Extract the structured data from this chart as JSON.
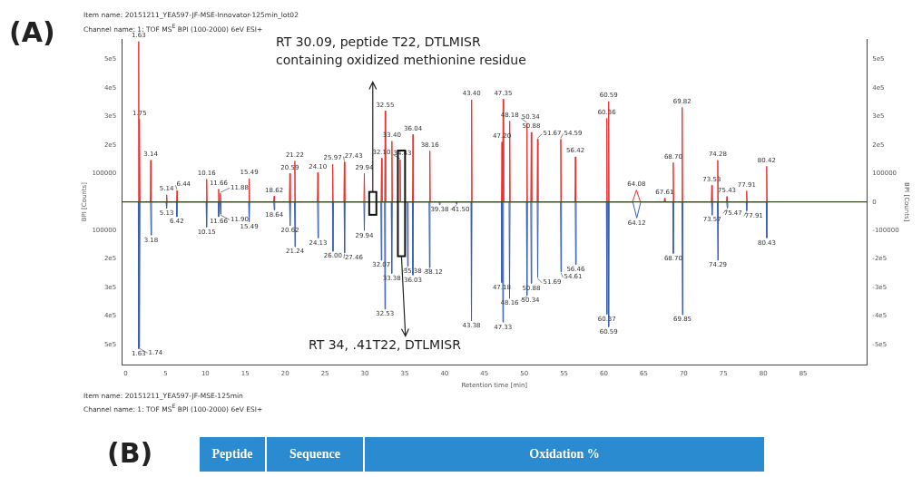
{
  "chart_data": {
    "type": "line",
    "xlabel": "Retention time [min]",
    "ylabel": "BPI [Counts]",
    "y2label": "BPI [Counts]",
    "marker": "none",
    "xlim": [
      -0.5,
      93
    ],
    "xticks": [
      0,
      5,
      10,
      15,
      20,
      25,
      30,
      35,
      40,
      45,
      50,
      55,
      60,
      65,
      70,
      75,
      80,
      85
    ],
    "ylim": [
      -570000,
      570000
    ],
    "yticks": [
      {
        "value": -500000,
        "label": "5e5"
      },
      {
        "value": -400000,
        "label": "4e5"
      },
      {
        "value": -300000,
        "label": "3e5"
      },
      {
        "value": -200000,
        "label": "2e5"
      },
      {
        "value": -100000,
        "label": "100000"
      },
      100000,
      {
        "value": 200000,
        "label": "2e5"
      },
      {
        "value": 300000,
        "label": "3e5"
      },
      {
        "value": 400000,
        "label": "4e5"
      },
      {
        "value": 500000,
        "label": "5e5"
      }
    ],
    "y2lim": [
      -570000,
      570000
    ],
    "y2ticks": [
      {
        "value": -500000,
        "label": "-5e5"
      },
      {
        "value": -400000,
        "label": "-4e5"
      },
      {
        "value": -300000,
        "label": "-3e5"
      },
      {
        "value": -200000,
        "label": "-2e5"
      },
      -100000,
      0,
      100000,
      {
        "value": 200000,
        "label": "2e5"
      },
      {
        "value": 300000,
        "label": "3e5"
      },
      {
        "value": 400000,
        "label": "4e5"
      },
      {
        "value": 500000,
        "label": "5e5"
      }
    ],
    "ref_lines": [
      {
        "axis": "y",
        "value": 0,
        "color": "#3b4a24"
      }
    ],
    "series": [
      {
        "color": "#e8312f",
        "x": [
          1.58,
          1.63,
          1.68,
          1.7,
          1.75,
          1.8,
          3.08,
          3.14,
          3.2,
          5.08,
          5.14,
          5.2,
          6.38,
          6.44,
          6.5,
          10.1,
          10.16,
          10.22,
          11.6,
          11.66,
          11.72,
          11.82,
          11.88,
          11.94,
          15.43,
          15.49,
          15.55,
          18.56,
          18.62,
          18.68,
          20.53,
          20.59,
          20.65,
          21.16,
          21.22,
          21.28,
          24.04,
          24.1,
          24.16,
          25.91,
          25.97,
          26.03,
          27.37,
          27.43,
          27.49,
          29.88,
          29.94,
          30.0,
          32.04,
          32.1,
          32.16,
          32.49,
          32.55,
          32.61,
          33.34,
          33.4,
          33.46,
          34.37,
          34.43,
          34.49,
          35.98,
          36.04,
          36.1,
          38.1,
          38.16,
          38.22,
          43.34,
          43.4,
          43.46,
          47.14,
          47.2,
          47.26,
          47.29,
          47.35,
          47.41,
          48.12,
          48.18,
          48.24,
          50.28,
          50.34,
          50.4,
          50.82,
          50.88,
          50.94,
          51.61,
          51.67,
          51.73,
          54.53,
          54.59,
          54.65,
          56.36,
          56.42,
          56.48,
          60.3,
          60.36,
          60.42,
          60.53,
          60.59,
          60.65,
          63.58,
          64.08,
          64.58,
          67.55,
          67.61,
          67.67,
          68.64,
          68.7,
          68.76,
          69.76,
          69.82,
          69.88,
          73.47,
          73.53,
          73.59,
          74.22,
          74.28,
          74.34,
          75.37,
          75.43,
          75.49,
          77.85,
          77.91,
          77.97,
          80.36,
          80.42,
          80.48
        ],
        "values": [
          0,
          562000,
          0,
          0,
          290000,
          0,
          0,
          146000,
          0,
          0,
          25000,
          0,
          0,
          40000,
          0,
          0,
          80000,
          0,
          0,
          45000,
          0,
          0,
          30000,
          0,
          0,
          82000,
          0,
          0,
          20000,
          0,
          0,
          100000,
          0,
          0,
          143000,
          0,
          0,
          103000,
          0,
          0,
          132000,
          0,
          0,
          140000,
          0,
          0,
          100000,
          0,
          0,
          153000,
          0,
          0,
          319000,
          0,
          0,
          213000,
          0,
          0,
          148000,
          0,
          0,
          236000,
          0,
          0,
          179000,
          0,
          0,
          358000,
          0,
          0,
          210000,
          0,
          0,
          360000,
          0,
          0,
          283000,
          0,
          0,
          275000,
          0,
          0,
          244000,
          0,
          0,
          220000,
          0,
          0,
          220000,
          0,
          0,
          158000,
          0,
          0,
          293000,
          0,
          0,
          352000,
          0,
          0,
          42000,
          0,
          0,
          13000,
          0,
          0,
          138000,
          0,
          0,
          331000,
          0,
          0,
          58000,
          0,
          0,
          146000,
          0,
          0,
          19000,
          0,
          0,
          39000,
          0,
          0,
          125000,
          0
        ]
      },
      {
        "color": "#3a5fb0",
        "x": [
          1.58,
          1.63,
          1.68,
          1.69,
          1.74,
          1.79,
          3.12,
          3.18,
          3.24,
          5.07,
          5.13,
          5.19,
          6.36,
          6.42,
          6.48,
          10.09,
          10.15,
          10.21,
          11.6,
          11.66,
          11.72,
          11.84,
          11.9,
          11.96,
          15.43,
          15.49,
          15.55,
          18.58,
          18.64,
          18.7,
          20.56,
          20.62,
          20.68,
          21.18,
          21.24,
          21.3,
          24.07,
          24.13,
          24.19,
          25.94,
          26.0,
          26.06,
          27.4,
          27.46,
          27.52,
          29.88,
          29.94,
          30.0,
          32.01,
          32.07,
          32.13,
          32.47,
          32.53,
          32.59,
          33.32,
          33.38,
          33.44,
          35.32,
          35.38,
          35.44,
          35.97,
          36.03,
          36.09,
          38.06,
          38.12,
          38.18,
          39.32,
          39.38,
          39.44,
          41.44,
          41.5,
          41.56,
          43.32,
          43.38,
          43.44,
          47.12,
          47.18,
          47.24,
          47.27,
          47.33,
          47.39,
          48.1,
          48.16,
          48.22,
          50.28,
          50.34,
          50.4,
          50.82,
          50.88,
          50.94,
          51.63,
          51.69,
          51.75,
          54.55,
          54.61,
          54.67,
          56.4,
          56.46,
          56.52,
          60.31,
          60.37,
          60.43,
          60.53,
          60.59,
          60.65,
          63.62,
          64.12,
          64.62,
          68.64,
          68.7,
          68.76,
          69.79,
          69.85,
          69.91,
          73.51,
          73.57,
          73.63,
          74.23,
          74.29,
          74.35,
          75.41,
          75.47,
          75.53,
          77.85,
          77.91,
          77.97,
          80.37,
          80.43,
          80.49
        ],
        "values": [
          0,
          -514000,
          0,
          0,
          -510000,
          0,
          0,
          -116000,
          0,
          0,
          -23000,
          0,
          0,
          -52000,
          0,
          0,
          -88000,
          0,
          0,
          -52000,
          0,
          0,
          -43000,
          0,
          0,
          -69000,
          0,
          0,
          -28000,
          0,
          0,
          -83000,
          0,
          0,
          -157000,
          0,
          0,
          -126000,
          0,
          0,
          -173000,
          0,
          0,
          -178000,
          0,
          0,
          -100000,
          0,
          0,
          -204000,
          0,
          0,
          -375000,
          0,
          0,
          -250000,
          0,
          0,
          -225000,
          0,
          0,
          -256000,
          0,
          0,
          -230000,
          0,
          0,
          -10000,
          0,
          0,
          -8000,
          0,
          0,
          -416000,
          0,
          0,
          -282000,
          0,
          0,
          -421000,
          0,
          0,
          -338000,
          0,
          0,
          -327000,
          0,
          0,
          -285000,
          0,
          0,
          -265000,
          0,
          0,
          -245000,
          0,
          0,
          -219000,
          0,
          0,
          -393000,
          0,
          0,
          -437000,
          0,
          0,
          -56000,
          0,
          0,
          -180000,
          0,
          0,
          -395000,
          0,
          0,
          -46000,
          0,
          0,
          -204000,
          0,
          0,
          -21000,
          0,
          0,
          -31000,
          0,
          0,
          -126000,
          0
        ]
      }
    ],
    "annotations": [
      "Item name: 20151211_YEA597-JF-MSE-Innovator-125min_lot02",
      "Channel name: 1: TOF MS$^{E}$ BPI (100-2000) 6eV ESI+",
      "RT 30.09, peptide T22, DTLMISR containing oxidized methionine residue",
      "RT 34, .41T22, DTLMISR",
      "Item name: 20151211_YEA597-JF-MSE-125min",
      "Channel name: 1: TOF MS$^{E}$ BPI (100-2000) 6eV ESI+",
      "(A)",
      "(B)",
      "Peptide",
      "Sequence",
      "Oxidation %",
      {
        "text": "1.63",
        "x": 1.63,
        "y": 562000
      },
      {
        "text": "1.75",
        "x": 1.75,
        "y": 290000
      },
      {
        "text": "3.14",
        "x": 3.14,
        "y": 146000
      },
      {
        "text": "5.14",
        "x": 5.14,
        "y": 25000
      },
      {
        "text": "6.44",
        "x": 6.44,
        "y": 40000
      },
      {
        "text": "10.16",
        "x": 10.16,
        "y": 80000
      },
      {
        "text": "11.66",
        "x": 11.66,
        "y": 45000
      },
      {
        "text": "11.88",
        "x": 11.88,
        "y": 30000
      },
      {
        "text": "15.49",
        "x": 15.49,
        "y": 82000
      },
      {
        "text": "18.62",
        "x": 18.62,
        "y": 20000
      },
      {
        "text": "20.59",
        "x": 20.59,
        "y": 100000
      },
      {
        "text": "21.22",
        "x": 21.22,
        "y": 143000
      },
      {
        "text": "24.10",
        "x": 24.1,
        "y": 103000
      },
      {
        "text": "25.97",
        "x": 25.97,
        "y": 132000
      },
      {
        "text": "27.43",
        "x": 27.43,
        "y": 140000
      },
      {
        "text": "29.94",
        "x": 29.94,
        "y": 100000
      },
      {
        "text": "32.10",
        "x": 32.1,
        "y": 153000
      },
      {
        "text": "32.55",
        "x": 32.55,
        "y": 319000
      },
      {
        "text": "33.40",
        "x": 33.4,
        "y": 213000
      },
      {
        "text": "34.43",
        "x": 34.43,
        "y": 148000
      },
      {
        "text": "36.04",
        "x": 36.04,
        "y": 236000
      },
      {
        "text": "38.16",
        "x": 38.16,
        "y": 179000
      },
      {
        "text": "43.40",
        "x": 43.4,
        "y": 358000
      },
      {
        "text": "47.20",
        "x": 47.2,
        "y": 210000
      },
      {
        "text": "47.35",
        "x": 47.35,
        "y": 360000
      },
      {
        "text": "48.18",
        "x": 48.18,
        "y": 283000
      },
      {
        "text": "50.34",
        "x": 50.34,
        "y": 275000
      },
      {
        "text": "50.88",
        "x": 50.88,
        "y": 244000
      },
      {
        "text": "51.67",
        "x": 51.67,
        "y": 220000
      },
      {
        "text": "54.59",
        "x": 54.59,
        "y": 220000
      },
      {
        "text": "56.42",
        "x": 56.42,
        "y": 158000
      },
      {
        "text": "60.36",
        "x": 60.36,
        "y": 293000
      },
      {
        "text": "60.59",
        "x": 60.59,
        "y": 352000
      },
      {
        "text": "64.08",
        "x": 64.08,
        "y": 42000
      },
      {
        "text": "67.61",
        "x": 67.61,
        "y": 13000
      },
      {
        "text": "68.70",
        "x": 68.7,
        "y": 138000
      },
      {
        "text": "69.82",
        "x": 69.82,
        "y": 331000
      },
      {
        "text": "73.53",
        "x": 73.53,
        "y": 58000
      },
      {
        "text": "74.28",
        "x": 74.28,
        "y": 146000
      },
      {
        "text": "75.43",
        "x": 75.43,
        "y": 19000
      },
      {
        "text": "77.91",
        "x": 77.91,
        "y": 39000
      },
      {
        "text": "80.42",
        "x": 80.42,
        "y": 125000
      },
      {
        "text": "1.63",
        "x": 1.63,
        "y": -514000
      },
      {
        "text": "1.74",
        "x": 1.74,
        "y": -510000
      },
      {
        "text": "3.18",
        "x": 3.18,
        "y": -116000
      },
      {
        "text": "5.13",
        "x": 5.13,
        "y": -23000
      },
      {
        "text": "6.42",
        "x": 6.42,
        "y": -52000
      },
      {
        "text": "10.15",
        "x": 10.15,
        "y": -88000
      },
      {
        "text": "11.66",
        "x": 11.66,
        "y": -52000
      },
      {
        "text": "11.90",
        "x": 11.9,
        "y": -43000
      },
      {
        "text": "15.49",
        "x": 15.49,
        "y": -69000
      },
      {
        "text": "18.64",
        "x": 18.64,
        "y": -28000
      },
      {
        "text": "20.62",
        "x": 20.62,
        "y": -83000
      },
      {
        "text": "21.24",
        "x": 21.24,
        "y": -157000
      },
      {
        "text": "24.13",
        "x": 24.13,
        "y": -126000
      },
      {
        "text": "26.00",
        "x": 26.0,
        "y": -173000
      },
      {
        "text": "27.46",
        "x": 27.46,
        "y": -178000
      },
      {
        "text": "29.94",
        "x": 29.94,
        "y": -100000
      },
      {
        "text": "32.07",
        "x": 32.07,
        "y": -204000
      },
      {
        "text": "32.53",
        "x": 32.53,
        "y": -375000
      },
      {
        "text": "33.38",
        "x": 33.38,
        "y": -250000
      },
      {
        "text": "35.38",
        "x": 35.38,
        "y": -225000
      },
      {
        "text": "36.03",
        "x": 36.03,
        "y": -256000
      },
      {
        "text": "38.12",
        "x": 38.12,
        "y": -230000
      },
      {
        "text": "39.38",
        "x": 39.38,
        "y": -10000
      },
      {
        "text": "41.50",
        "x": 41.5,
        "y": -8000
      },
      {
        "text": "43.38",
        "x": 43.38,
        "y": -416000
      },
      {
        "text": "47.18",
        "x": 47.18,
        "y": -282000
      },
      {
        "text": "47.33",
        "x": 47.33,
        "y": -421000
      },
      {
        "text": "48.16",
        "x": 48.16,
        "y": -338000
      },
      {
        "text": "50.34",
        "x": 50.34,
        "y": -327000
      },
      {
        "text": "50.88",
        "x": 50.88,
        "y": -285000
      },
      {
        "text": "51.69",
        "x": 51.69,
        "y": -265000
      },
      {
        "text": "54.61",
        "x": 54.61,
        "y": -245000
      },
      {
        "text": "56.46",
        "x": 56.46,
        "y": -219000
      },
      {
        "text": "60.37",
        "x": 60.37,
        "y": -393000
      },
      {
        "text": "60.59",
        "x": 60.59,
        "y": -437000
      },
      {
        "text": "64.12",
        "x": 64.12,
        "y": -56000
      },
      {
        "text": "68.70",
        "x": 68.7,
        "y": -180000
      },
      {
        "text": "69.85",
        "x": 69.85,
        "y": -395000
      },
      {
        "text": "73.57",
        "x": 73.57,
        "y": -46000
      },
      {
        "text": "74.29",
        "x": 74.29,
        "y": -204000
      },
      {
        "text": "75.47",
        "x": 75.47,
        "y": -21000
      },
      {
        "text": "77.91",
        "x": 77.91,
        "y": -31000
      },
      {
        "text": "80.43",
        "x": 80.43,
        "y": -126000
      }
    ]
  }
}
